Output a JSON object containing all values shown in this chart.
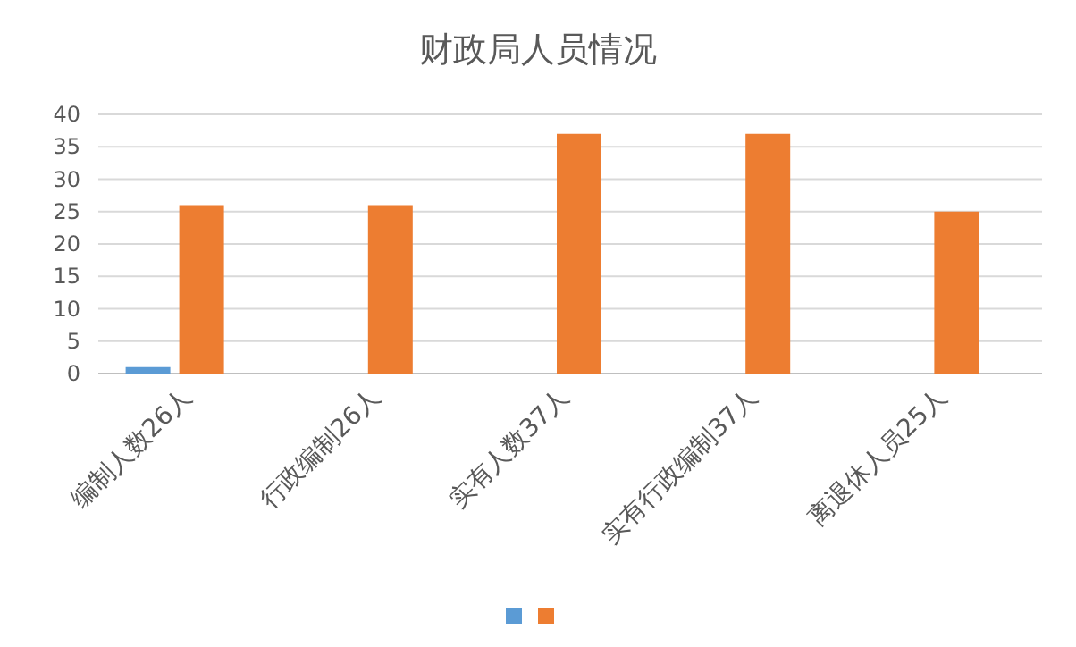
{
  "chart_data": {
    "type": "bar",
    "title": "财政局人员情况",
    "categories": [
      "编制人数26人",
      "行政编制26人",
      "实有人数37人",
      "实有行政编制37人",
      "离退休人员25人"
    ],
    "series": [
      {
        "color": "#5b9bd5",
        "values": [
          1,
          null,
          null,
          null,
          null
        ]
      },
      {
        "color": "#ed7d31",
        "values": [
          26,
          26,
          37,
          37,
          25
        ]
      }
    ],
    "ylim": [
      0,
      40
    ],
    "yticks": [
      0,
      5,
      10,
      15,
      20,
      25,
      30,
      35,
      40
    ],
    "grid": "y"
  }
}
